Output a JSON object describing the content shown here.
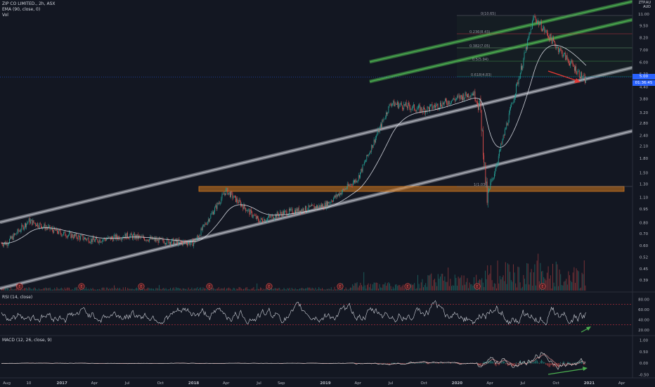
{
  "header": {
    "symbol": "ZIP CO LIMITED., 2h, ASX",
    "ema": "EMA (90, close, 0)",
    "vol": "Vol",
    "currency_line1": "ZTP.AU",
    "currency_line2": "AUD"
  },
  "price_scale": {
    "labels": [
      "11.00",
      "9.50",
      "8.20",
      "7.00",
      "6.00",
      "5.20",
      "4.40",
      "3.80",
      "3.20",
      "2.80",
      "2.40",
      "2.10",
      "1.80",
      "1.50",
      "1.30",
      "1.10",
      "0.95",
      "0.80",
      "0.70",
      "0.60",
      "0.52",
      "0.45",
      "0.39"
    ],
    "last_price": "5.00",
    "countdown": "01:36:45"
  },
  "rsi": {
    "label": "RSI (14, close)",
    "scale": [
      "80.00",
      "60.00",
      "40.00",
      "20.00"
    ]
  },
  "macd": {
    "label": "MACD (12, 26, close, 9)",
    "scale": [
      "1.00",
      "0.50",
      "0.00",
      "-0.50"
    ]
  },
  "time_axis": [
    "Aug",
    "10",
    "2017",
    "Apr",
    "Jul",
    "Oct",
    "2018",
    "Apr",
    "Jul",
    "Sep",
    "2019",
    "Apr",
    "Jul",
    "Oct",
    "2020",
    "Apr",
    "Jul",
    "Oct",
    "2021",
    "Apr"
  ],
  "fib_labels": [
    "0(10.65)",
    "0.236(8.43)",
    "0.382(7.05)",
    "0.5(5.94)",
    "0.618(4.83)",
    "1(1.03)"
  ],
  "earnings_marker": "E",
  "colors": {
    "background": "#131722",
    "up": "#26a69a",
    "down": "#ef5350",
    "ema": "#d1d4dc",
    "channel_white": "#9598a1",
    "channel_green": "#4caf50",
    "support_zone": "#d47a1f",
    "arrow_red": "#e53935",
    "arrow_green": "#4caf50"
  },
  "chart_data": [
    {
      "type": "line",
      "title": "ZIP CO LIMITED., 2h, ASX",
      "yscale": "log",
      "x": [
        "2016-08",
        "2016-10",
        "2017-01",
        "2017-04",
        "2017-07",
        "2017-10",
        "2018-01",
        "2018-04",
        "2018-07",
        "2018-09",
        "2019-01",
        "2019-04",
        "2019-07",
        "2019-10",
        "2020-01",
        "2020-03",
        "2020-04",
        "2020-07",
        "2020-08",
        "2020-10",
        "2020-12"
      ],
      "series": [
        {
          "values": [
            0.62,
            0.82,
            0.7,
            0.64,
            0.68,
            0.64,
            0.62,
            1.2,
            0.82,
            0.9,
            1.0,
            1.4,
            3.6,
            3.3,
            4.1,
            3.4,
            1.06,
            6.0,
            10.65,
            7.4,
            4.8
          ]
        }
      ],
      "ylim": [
        0.39,
        11.5
      ]
    },
    {
      "type": "line",
      "title": "RSI (14, close)",
      "ylim": [
        10,
        90
      ],
      "levels": [
        70,
        30
      ]
    },
    {
      "type": "line",
      "title": "MACD (12, 26, close, 9)",
      "ylim": [
        -0.6,
        1.1
      ]
    }
  ]
}
